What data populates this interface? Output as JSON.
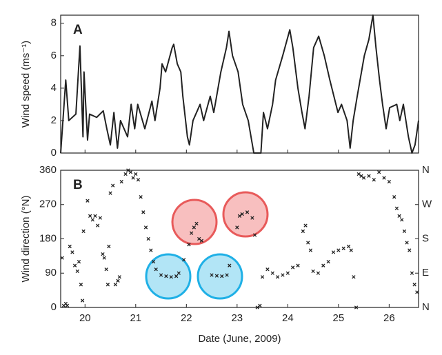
{
  "chart_data": [
    {
      "type": "line",
      "panel_label": "A",
      "ylabel": "Wind speed (ms⁻¹)",
      "color": "#222222",
      "x": [
        19.52,
        19.62,
        19.68,
        19.82,
        19.9,
        19.96,
        19.98,
        20.05,
        20.09,
        20.23,
        20.36,
        20.43,
        20.5,
        20.57,
        20.64,
        20.7,
        20.84,
        20.91,
        20.98,
        21.04,
        21.18,
        21.32,
        21.38,
        21.48,
        21.52,
        21.59,
        21.72,
        21.75,
        21.82,
        21.89,
        21.93,
        22.02,
        22.06,
        22.13,
        22.27,
        22.34,
        22.47,
        22.54,
        22.68,
        22.79,
        22.84,
        22.91,
        23.02,
        23.11,
        23.22,
        23.33,
        23.47,
        23.52,
        23.6,
        23.7,
        23.76,
        23.9,
        24.04,
        24.1,
        24.2,
        24.28,
        24.34,
        24.42,
        24.51,
        24.61,
        24.72,
        24.83,
        24.91,
        24.99,
        25.06,
        25.17,
        25.23,
        25.29,
        25.37,
        25.51,
        25.6,
        25.68,
        25.74,
        25.81,
        25.87,
        25.94,
        26.01,
        26.15,
        26.21,
        26.28,
        26.38,
        26.45,
        26.51,
        26.58
      ],
      "values": [
        0,
        4.5,
        2.0,
        2.4,
        6.6,
        1.0,
        5.0,
        0.8,
        2.4,
        2.2,
        2.6,
        1.5,
        0.5,
        2.5,
        0.3,
        2.0,
        1.0,
        3.0,
        1.5,
        3.0,
        1.5,
        3.2,
        2.0,
        4.0,
        5.5,
        5.0,
        6.5,
        6.7,
        5.5,
        5.0,
        3.5,
        1.0,
        0.5,
        2.0,
        3.0,
        2.0,
        3.5,
        2.5,
        5.0,
        6.5,
        7.5,
        6.0,
        5.0,
        3.0,
        2.0,
        0,
        0,
        2.5,
        1.5,
        3.0,
        4.5,
        6.0,
        7.6,
        6.5,
        4.0,
        2.5,
        1.5,
        3.5,
        6.5,
        7.2,
        6.0,
        4.5,
        3.5,
        2.5,
        3.0,
        2.0,
        0.3,
        2.0,
        3.5,
        6.0,
        7.0,
        8.5,
        6.5,
        4.5,
        3.0,
        1.5,
        2.8,
        3.0,
        2.0,
        3.0,
        1.0,
        0,
        0.5,
        2.0
      ],
      "xlim": [
        19.52,
        26.58
      ],
      "xticks": [
        20,
        21,
        22,
        23,
        24,
        25,
        26
      ],
      "ylim": [
        0,
        8.5
      ],
      "yticks": [
        0,
        2,
        4,
        6,
        8
      ]
    },
    {
      "type": "scatter",
      "panel_label": "B",
      "ylabel": "Wind direction (°N)",
      "xlabel": "Date (June, 2009)",
      "color": "#222222",
      "x": [
        19.55,
        19.58,
        19.62,
        19.65,
        19.7,
        19.75,
        19.8,
        19.85,
        19.88,
        19.92,
        19.95,
        19.97,
        20.05,
        20.1,
        20.15,
        20.2,
        20.25,
        20.3,
        20.35,
        20.38,
        20.42,
        20.45,
        20.47,
        20.5,
        20.55,
        20.6,
        20.65,
        20.68,
        20.72,
        20.8,
        20.85,
        20.9,
        20.95,
        21.0,
        21.05,
        21.1,
        21.15,
        21.2,
        21.25,
        21.3,
        21.35,
        21.4,
        21.5,
        21.6,
        21.7,
        21.8,
        21.85,
        21.95,
        22.05,
        22.1,
        22.15,
        22.2,
        22.25,
        22.3,
        22.5,
        22.6,
        22.7,
        22.8,
        22.85,
        23.0,
        23.05,
        23.1,
        23.2,
        23.3,
        23.35,
        23.4,
        23.45,
        23.5,
        23.6,
        23.7,
        23.8,
        23.9,
        24.0,
        24.1,
        24.2,
        24.3,
        24.35,
        24.4,
        24.45,
        24.5,
        24.6,
        24.7,
        24.8,
        24.9,
        25.0,
        25.1,
        25.2,
        25.25,
        25.3,
        25.35,
        25.4,
        25.45,
        25.5,
        25.6,
        25.7,
        25.8,
        25.9,
        26.0,
        26.1,
        26.15,
        26.2,
        26.25,
        26.3,
        26.35,
        26.4,
        26.45,
        26.5,
        26.55
      ],
      "values": [
        130,
        5,
        10,
        5,
        160,
        145,
        110,
        95,
        120,
        60,
        18,
        200,
        280,
        240,
        230,
        240,
        215,
        235,
        140,
        130,
        100,
        60,
        160,
        300,
        320,
        60,
        70,
        80,
        330,
        350,
        360,
        355,
        340,
        350,
        335,
        290,
        250,
        210,
        180,
        150,
        120,
        100,
        85,
        82,
        80,
        82,
        90,
        125,
        165,
        195,
        210,
        220,
        180,
        175,
        85,
        83,
        82,
        85,
        110,
        210,
        240,
        245,
        250,
        235,
        190,
        0,
        5,
        80,
        100,
        90,
        80,
        85,
        90,
        105,
        110,
        200,
        215,
        170,
        150,
        95,
        90,
        110,
        120,
        145,
        150,
        155,
        160,
        150,
        80,
        0,
        350,
        345,
        340,
        345,
        335,
        355,
        340,
        330,
        290,
        260,
        240,
        230,
        200,
        170,
        150,
        90,
        60,
        40
      ],
      "xlim": [
        19.52,
        26.58
      ],
      "xticks": [
        20,
        21,
        22,
        23,
        24,
        25,
        26
      ],
      "ylim": [
        0,
        360
      ],
      "yticks": [
        0,
        90,
        180,
        270,
        360
      ],
      "y2lim": [
        0,
        360
      ],
      "y2ticks": [
        {
          "value": 0,
          "label": "N"
        },
        {
          "value": 90,
          "label": "E"
        },
        {
          "value": 180,
          "label": "S"
        },
        {
          "value": 270,
          "label": "W"
        },
        {
          "value": 360,
          "label": "N"
        }
      ]
    }
  ]
}
